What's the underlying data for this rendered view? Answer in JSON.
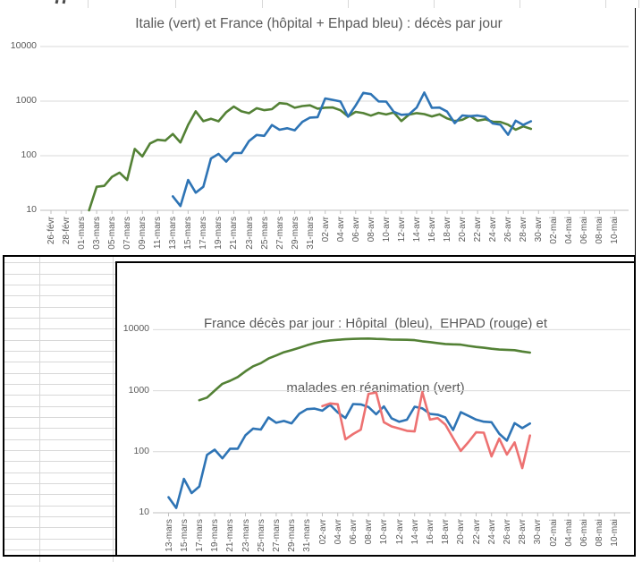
{
  "colors": {
    "green": "#538135",
    "blue": "#2E74B5",
    "red": "#ED7171",
    "grid": "#D9D9D9",
    "axis": "#BFBFBF",
    "text": "#595959",
    "chart_border": "#000000",
    "sheet_grid": "#D8D8D8"
  },
  "chart_data": [
    {
      "type": "line",
      "scale": "log",
      "grid": true,
      "legend": "none",
      "title": "Italie (vert) et France (hôpital + Ehpad bleu) : décès par jour",
      "ylabel": "",
      "xlabel": "",
      "ylim": [
        10,
        10000
      ],
      "y_tick_labels": [
        "10000",
        "1000",
        "100",
        "10"
      ],
      "n_days": 75,
      "tick_every": 2,
      "x_tick_labels": [
        "26-févr",
        "28-févr",
        "01-mars",
        "03-mars",
        "05-mars",
        "07-mars",
        "09-mars",
        "11-mars",
        "13-mars",
        "15-mars",
        "17-mars",
        "19-mars",
        "21-mars",
        "23-mars",
        "25-mars",
        "27-mars",
        "29-mars",
        "31-mars",
        "02-avr",
        "04-avr",
        "06-avr",
        "08-avr",
        "10-avr",
        "12-avr",
        "14-avr",
        "16-avr",
        "18-avr",
        "20-avr",
        "22-avr",
        "24-avr",
        "26-avr",
        "28-avr",
        "30-avr",
        "02-mai",
        "04-mai",
        "06-mai",
        "08-mai",
        "10-mai"
      ],
      "series": [
        {
          "key": "italie",
          "name": "Italie",
          "color": "#538135",
          "start_day": 5,
          "values": [
            10,
            27,
            28,
            41,
            49,
            36,
            133,
            97,
            168,
            196,
            189,
            250,
            175,
            368,
            650,
            430,
            475,
            427,
            627,
            793,
            651,
            601,
            743,
            683,
            712,
            919,
            889,
            756,
            812,
            837,
            727,
            760,
            766,
            681,
            525,
            636,
            604,
            542,
            610,
            570,
            619,
            431,
            566,
            602,
            578,
            525,
            575,
            482,
            433,
            454,
            534,
            437,
            464,
            420,
            415,
            370,
            300,
            345,
            310
          ]
        },
        {
          "key": "france-hopital-ehpad",
          "name": "France (hôpital + Ehpad)",
          "color": "#2E74B5",
          "start_day": 16,
          "values": [
            18,
            12,
            36,
            21,
            27,
            89,
            108,
            78,
            112,
            112,
            186,
            240,
            231,
            365,
            299,
            319,
            292,
            418,
            499,
            509,
            1120,
            1053,
            985,
            518,
            833,
            1417,
            1341,
            987,
            981,
            635,
            561,
            574,
            762,
            1438,
            753,
            761,
            642,
            395,
            547,
            531,
            544,
            516,
            389,
            369,
            242,
            437,
            367,
            427
          ]
        }
      ]
    },
    {
      "type": "line",
      "scale": "log",
      "grid": true,
      "legend": "none",
      "title_line1": "France décès par jour : Hôpital  (bleu),  EHPAD (rouge) et",
      "title_line2": "malades en réanimation (vert)",
      "ylabel": "",
      "xlabel": "",
      "ylim": [
        10,
        10000
      ],
      "y_tick_labels": [
        "10000",
        "1000",
        "100",
        "10"
      ],
      "n_days": 59,
      "tick_every": 2,
      "x_tick_labels": [
        "13-mars",
        "15-mars",
        "17-mars",
        "19-mars",
        "21-mars",
        "23-mars",
        "25-mars",
        "27-mars",
        "29-mars",
        "31-mars",
        "02-avr",
        "04-avr",
        "06-avr",
        "08-avr",
        "10-avr",
        "12-avr",
        "14-avr",
        "16-avr",
        "18-avr",
        "20-avr",
        "22-avr",
        "24-avr",
        "26-avr",
        "28-avr",
        "30-avr",
        "02-mai",
        "04-mai",
        "06-mai",
        "08-mai",
        "10-mai"
      ],
      "series": [
        {
          "key": "reanimation",
          "name": "Malades en réanimation",
          "color": "#538135",
          "start_day": 4,
          "values": [
            699,
            771,
            1002,
            1297,
            1453,
            1674,
            2080,
            2516,
            2827,
            3375,
            3787,
            4273,
            4632,
            5056,
            5565,
            6017,
            6399,
            6662,
            6838,
            6978,
            7072,
            7131,
            7148,
            7066,
            7004,
            6883,
            6845,
            6821,
            6730,
            6457,
            6248,
            6027,
            5833,
            5744,
            5683,
            5433,
            5218,
            5053,
            4870,
            4725,
            4682,
            4608,
            4387,
            4207
          ]
        },
        {
          "key": "hopital",
          "name": "Hôpital",
          "color": "#2E74B5",
          "start_day": 0,
          "values": [
            18,
            12,
            36,
            21,
            27,
            89,
            108,
            78,
            112,
            112,
            186,
            240,
            231,
            365,
            299,
            319,
            292,
            418,
            499,
            509,
            471,
            588,
            441,
            357,
            605,
            597,
            541,
            412,
            554,
            353,
            310,
            335,
            547,
            514,
            417,
            405,
            364,
            227,
            444,
            387,
            336,
            311,
            305,
            198,
            152,
            295,
            244,
            290
          ]
        },
        {
          "key": "ehpad",
          "name": "EHPAD",
          "color": "#ED7171",
          "start_day": 20,
          "values": [
            560,
            620,
            600,
            160,
            195,
            230,
            890,
            935,
            305,
            260,
            240,
            220,
            215,
            950,
            336,
            356,
            278,
            168,
            103,
            144,
            208,
            205,
            84,
            164,
            90,
            142,
            54,
            184
          ]
        }
      ]
    }
  ]
}
